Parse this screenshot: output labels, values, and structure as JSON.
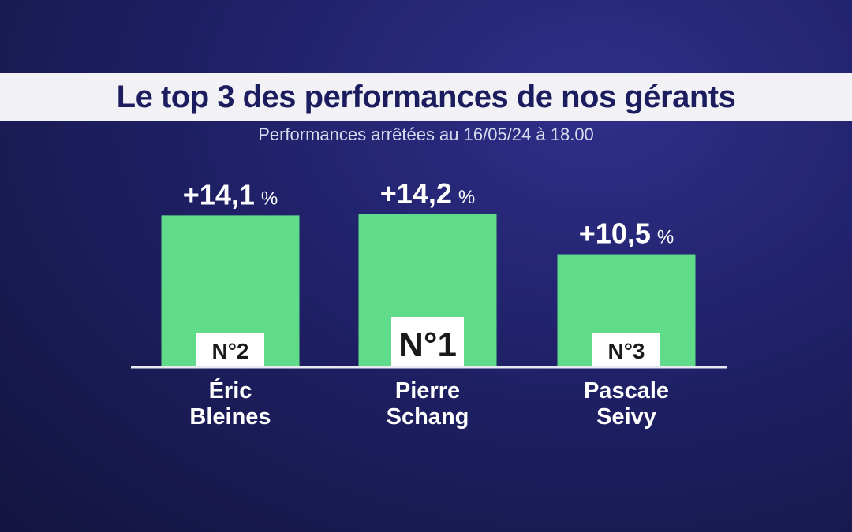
{
  "title": "Le top 3 des performances de nos gérants",
  "subtitle": "Performances arrêtées au 16/05/24 à 18.00",
  "chart_data": {
    "type": "bar",
    "title": "Le top 3 des performances de nos gérants",
    "subtitle": "Performances arrêtées au 16/05/24 à 18.00",
    "categories": [
      "Éric Bleines",
      "Pierre Schang",
      "Pascale Seivy"
    ],
    "values": [
      14.1,
      14.2,
      10.5
    ],
    "value_labels": [
      "+14,1",
      "+14,2",
      "+10,5"
    ],
    "unit": "%",
    "ranks": [
      "N°2",
      "N°1",
      "N°3"
    ],
    "name_lines": [
      [
        "Éric",
        "Bleines"
      ],
      [
        "Pierre",
        "Schang"
      ],
      [
        "Pascale",
        "Seivy"
      ]
    ],
    "ylim": [
      0,
      14.2
    ],
    "grid": false,
    "legend": "none",
    "colors": {
      "bar": "#5fdb8a",
      "baseline": "#e8e8f0",
      "badge": "#ffffff"
    }
  }
}
